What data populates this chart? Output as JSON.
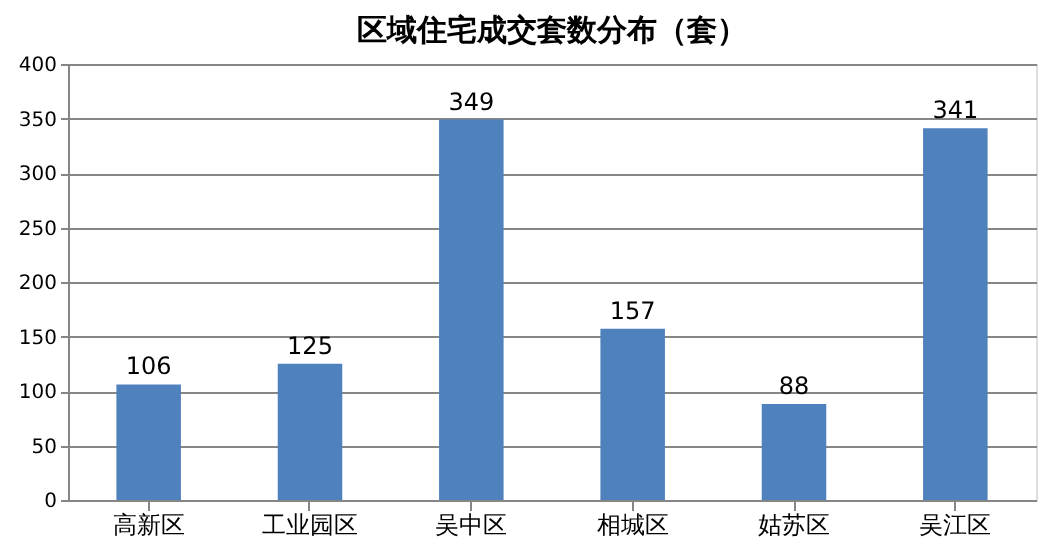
{
  "chart_data": {
    "type": "bar",
    "title": "区域住宅成交套数分布（套）",
    "categories": [
      "高新区",
      "工业园区",
      "吴中区",
      "相城区",
      "姑苏区",
      "吴江区"
    ],
    "values": [
      106,
      125,
      349,
      157,
      88,
      341
    ],
    "color": "#4f81bd",
    "ylim": [
      0,
      400
    ],
    "yticks": [
      0,
      50,
      100,
      150,
      200,
      250,
      300,
      350,
      400
    ],
    "grid": "y",
    "data_labels": true
  }
}
